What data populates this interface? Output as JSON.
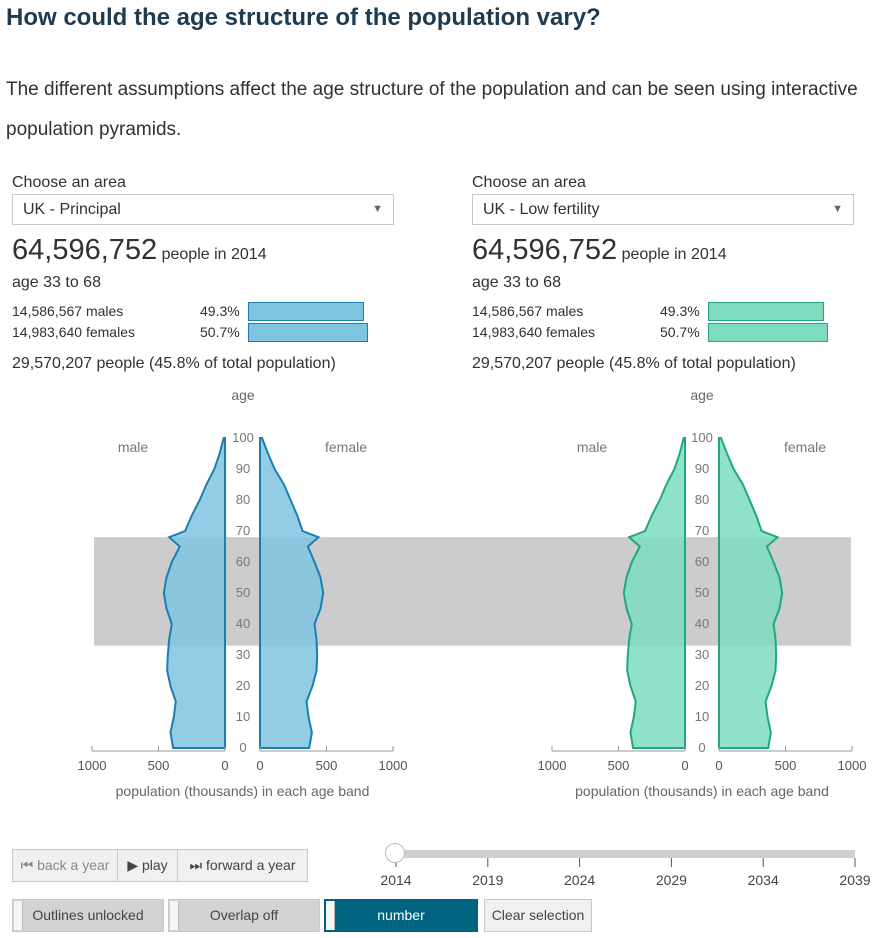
{
  "heading": "How could the age structure of the population vary?",
  "intro": "The different assumptions affect the age structure of the population and can be seen using interactive population pyramids.",
  "panels": [
    {
      "choose_label": "Choose an area",
      "selected": "UK - Principal",
      "total": "64,596,752",
      "total_suffix": "people in 2014",
      "age_range": "age 33 to 68",
      "males": "14,586,567 males",
      "males_pct": "49.3%",
      "males_share": 0.493,
      "females": "14,983,640 females",
      "females_pct": "50.7%",
      "females_share": 0.507,
      "summary": "29,570,207 people (45.8% of total population)",
      "fill_color": "#7fc4e1",
      "line_color": "#1a7fb0"
    },
    {
      "choose_label": "Choose an area",
      "selected": "UK - Low fertility",
      "total": "64,596,752",
      "total_suffix": "people in 2014",
      "age_range": "age 33 to 68",
      "males": "14,586,567 males",
      "males_pct": "49.3%",
      "males_share": 0.493,
      "females": "14,983,640 females",
      "females_pct": "50.7%",
      "females_share": 0.507,
      "summary": "29,570,207 people (45.8% of total population)",
      "fill_color": "#7ddcc0",
      "line_color": "#21a77f"
    }
  ],
  "chart_data": [
    {
      "type": "bar",
      "orientation": "horizontal-pyramid",
      "title": "UK - Principal",
      "year": "2014",
      "ylabel": "age",
      "xlabel": "population (thousands) in each age band",
      "male_label": "male",
      "female_label": "female",
      "age_ticks": [
        "0",
        "10",
        "20",
        "30",
        "40",
        "50",
        "60",
        "70",
        "80",
        "90",
        "100"
      ],
      "x_ticks_left": [
        "1000",
        "500",
        "0"
      ],
      "x_ticks_right": [
        "0",
        "500",
        "1000"
      ],
      "xlim": [
        0,
        1000
      ],
      "ylim": [
        0,
        100
      ],
      "highlight_age_range": [
        33,
        68
      ],
      "age_points": [
        0,
        5,
        10,
        15,
        20,
        25,
        30,
        35,
        40,
        45,
        50,
        55,
        60,
        65,
        68,
        70,
        75,
        80,
        85,
        90,
        95,
        100
      ],
      "male": [
        390,
        410,
        385,
        370,
        410,
        435,
        430,
        420,
        400,
        440,
        460,
        440,
        400,
        340,
        420,
        300,
        250,
        190,
        140,
        80,
        40,
        10
      ],
      "female": [
        370,
        390,
        365,
        350,
        395,
        425,
        430,
        425,
        410,
        455,
        475,
        455,
        410,
        360,
        440,
        320,
        280,
        230,
        180,
        110,
        60,
        15
      ]
    },
    {
      "type": "bar",
      "orientation": "horizontal-pyramid",
      "title": "UK - Low fertility",
      "year": "2014",
      "ylabel": "age",
      "xlabel": "population (thousands) in each age band",
      "male_label": "male",
      "female_label": "female",
      "age_ticks": [
        "0",
        "10",
        "20",
        "30",
        "40",
        "50",
        "60",
        "70",
        "80",
        "90",
        "100"
      ],
      "x_ticks_left": [
        "1000",
        "500",
        "0"
      ],
      "x_ticks_right": [
        "0",
        "500",
        "1000"
      ],
      "xlim": [
        0,
        1000
      ],
      "ylim": [
        0,
        100
      ],
      "highlight_age_range": [
        33,
        68
      ],
      "age_points": [
        0,
        5,
        10,
        15,
        20,
        25,
        30,
        35,
        40,
        45,
        50,
        55,
        60,
        65,
        68,
        70,
        75,
        80,
        85,
        90,
        95,
        100
      ],
      "male": [
        390,
        410,
        385,
        370,
        410,
        435,
        430,
        420,
        400,
        440,
        460,
        440,
        400,
        340,
        420,
        300,
        250,
        190,
        140,
        80,
        40,
        10
      ],
      "female": [
        370,
        390,
        365,
        350,
        395,
        425,
        430,
        425,
        410,
        455,
        475,
        455,
        410,
        360,
        440,
        320,
        280,
        230,
        180,
        110,
        60,
        15
      ]
    }
  ],
  "controls": {
    "back": "back a year",
    "play": "play",
    "forward": "forward a year",
    "outlines": "Outlines unlocked",
    "overlap": "Overlap off",
    "number": "number",
    "clear": "Clear selection"
  },
  "timeline": {
    "years": [
      "2014",
      "2019",
      "2024",
      "2029",
      "2034",
      "2039"
    ],
    "current_index": 0
  }
}
